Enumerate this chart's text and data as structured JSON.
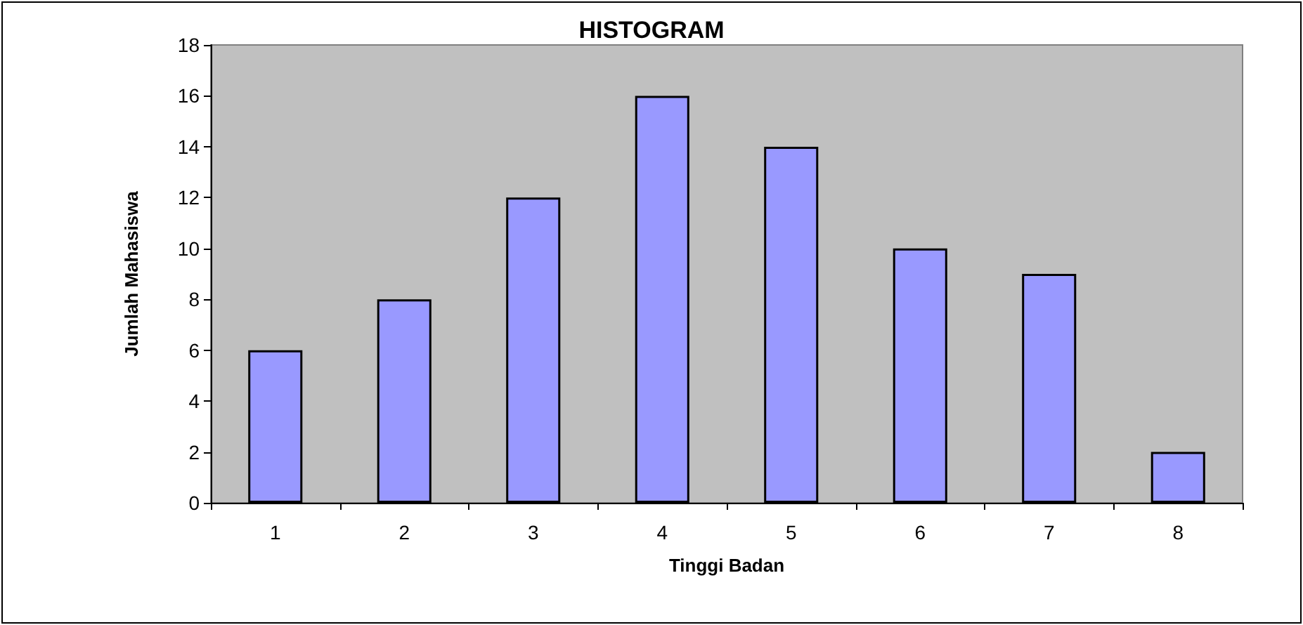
{
  "chart_data": {
    "type": "bar",
    "title": "HISTOGRAM",
    "xlabel": "Tinggi Badan",
    "ylabel": "Jumlah Mahasiswa",
    "categories": [
      "1",
      "2",
      "3",
      "4",
      "5",
      "6",
      "7",
      "8"
    ],
    "values": [
      6,
      8,
      12,
      16,
      14,
      10,
      9,
      2
    ],
    "color": "#9999ff",
    "ylim": [
      0,
      18
    ],
    "yticks": [
      0,
      2,
      4,
      6,
      8,
      10,
      12,
      14,
      16,
      18
    ]
  }
}
